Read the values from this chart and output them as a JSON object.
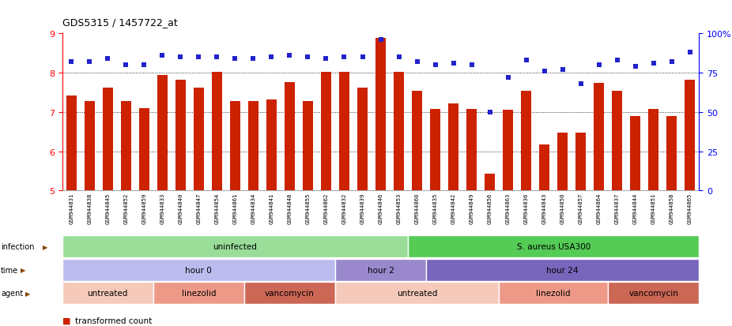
{
  "title": "GDS5315 / 1457722_at",
  "samples": [
    "GSM944831",
    "GSM944838",
    "GSM944845",
    "GSM944852",
    "GSM944859",
    "GSM944833",
    "GSM944840",
    "GSM944847",
    "GSM944854",
    "GSM944861",
    "GSM944834",
    "GSM944841",
    "GSM944848",
    "GSM944855",
    "GSM944862",
    "GSM944832",
    "GSM944839",
    "GSM944846",
    "GSM944853",
    "GSM944860",
    "GSM944835",
    "GSM944842",
    "GSM944849",
    "GSM944856",
    "GSM944863",
    "GSM944836",
    "GSM944843",
    "GSM944850",
    "GSM944857",
    "GSM944864",
    "GSM944837",
    "GSM944844",
    "GSM944851",
    "GSM944858",
    "GSM944865"
  ],
  "bar_values": [
    7.42,
    7.28,
    7.62,
    7.28,
    7.1,
    7.95,
    7.82,
    7.62,
    8.02,
    7.28,
    7.28,
    7.32,
    7.77,
    7.28,
    8.02,
    8.02,
    7.62,
    8.88,
    8.02,
    7.55,
    7.08,
    7.22,
    7.08,
    5.42,
    7.05,
    7.55,
    6.18,
    6.48,
    6.48,
    7.75,
    7.55,
    6.9,
    7.08,
    6.9,
    7.82
  ],
  "percentile_values": [
    82,
    82,
    84,
    80,
    80,
    86,
    85,
    85,
    85,
    84,
    84,
    85,
    86,
    85,
    84,
    85,
    85,
    96,
    85,
    82,
    80,
    81,
    80,
    50,
    72,
    83,
    76,
    77,
    68,
    80,
    83,
    79,
    81,
    82,
    88
  ],
  "bar_color": "#cc2200",
  "dot_color": "#2222cc",
  "ylim_left": [
    5,
    9
  ],
  "ylim_right": [
    0,
    100
  ],
  "yticks_left": [
    5,
    6,
    7,
    8,
    9
  ],
  "yticks_right": [
    0,
    25,
    50,
    75,
    100
  ],
  "grid_values": [
    6.0,
    7.0,
    8.0
  ],
  "infection_groups": [
    {
      "label": "uninfected",
      "start": 0,
      "end": 19,
      "color": "#99dd99"
    },
    {
      "label": "S. aureus USA300",
      "start": 19,
      "end": 35,
      "color": "#55cc55"
    }
  ],
  "time_groups": [
    {
      "label": "hour 0",
      "start": 0,
      "end": 15,
      "color": "#bbbbee"
    },
    {
      "label": "hour 2",
      "start": 15,
      "end": 20,
      "color": "#9988cc"
    },
    {
      "label": "hour 24",
      "start": 20,
      "end": 35,
      "color": "#7766bb"
    }
  ],
  "agent_groups": [
    {
      "label": "untreated",
      "start": 0,
      "end": 5,
      "color": "#f5cabb"
    },
    {
      "label": "linezolid",
      "start": 5,
      "end": 10,
      "color": "#ee9988"
    },
    {
      "label": "vancomycin",
      "start": 10,
      "end": 15,
      "color": "#cc6655"
    },
    {
      "label": "untreated",
      "start": 15,
      "end": 24,
      "color": "#f5cabb"
    },
    {
      "label": "linezolid",
      "start": 24,
      "end": 30,
      "color": "#ee9988"
    },
    {
      "label": "vancomycin",
      "start": 30,
      "end": 35,
      "color": "#cc6655"
    }
  ],
  "row_labels": [
    "infection",
    "time",
    "agent"
  ],
  "xtick_bg_color": "#d8d8d8",
  "left_label_color": "#333333"
}
